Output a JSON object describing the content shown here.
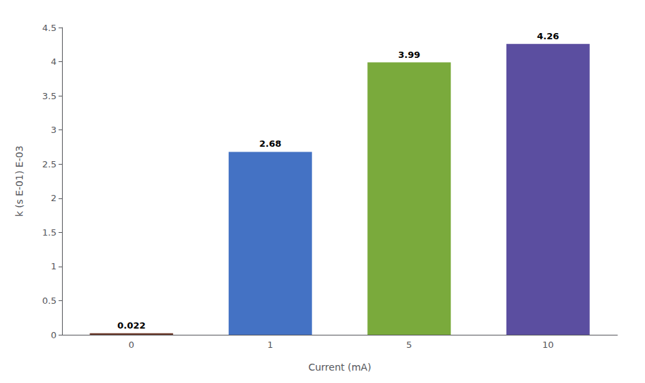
{
  "chart_data": {
    "type": "bar",
    "categories": [
      "0",
      "1",
      "5",
      "10"
    ],
    "values": [
      0.022,
      2.68,
      3.99,
      4.26
    ],
    "colors": [
      "#6B3A2A",
      "#4472C4",
      "#7AAA3C",
      "#5B4EA0"
    ],
    "xlabel": "Current (mA)",
    "ylabel": "k (s E-01) E-03",
    "ylim": [
      0,
      4.5
    ],
    "yticks": [
      0,
      0.5,
      1,
      1.5,
      2,
      2.5,
      3,
      3.5,
      4,
      4.5
    ],
    "grid": false,
    "data_labels": true
  }
}
